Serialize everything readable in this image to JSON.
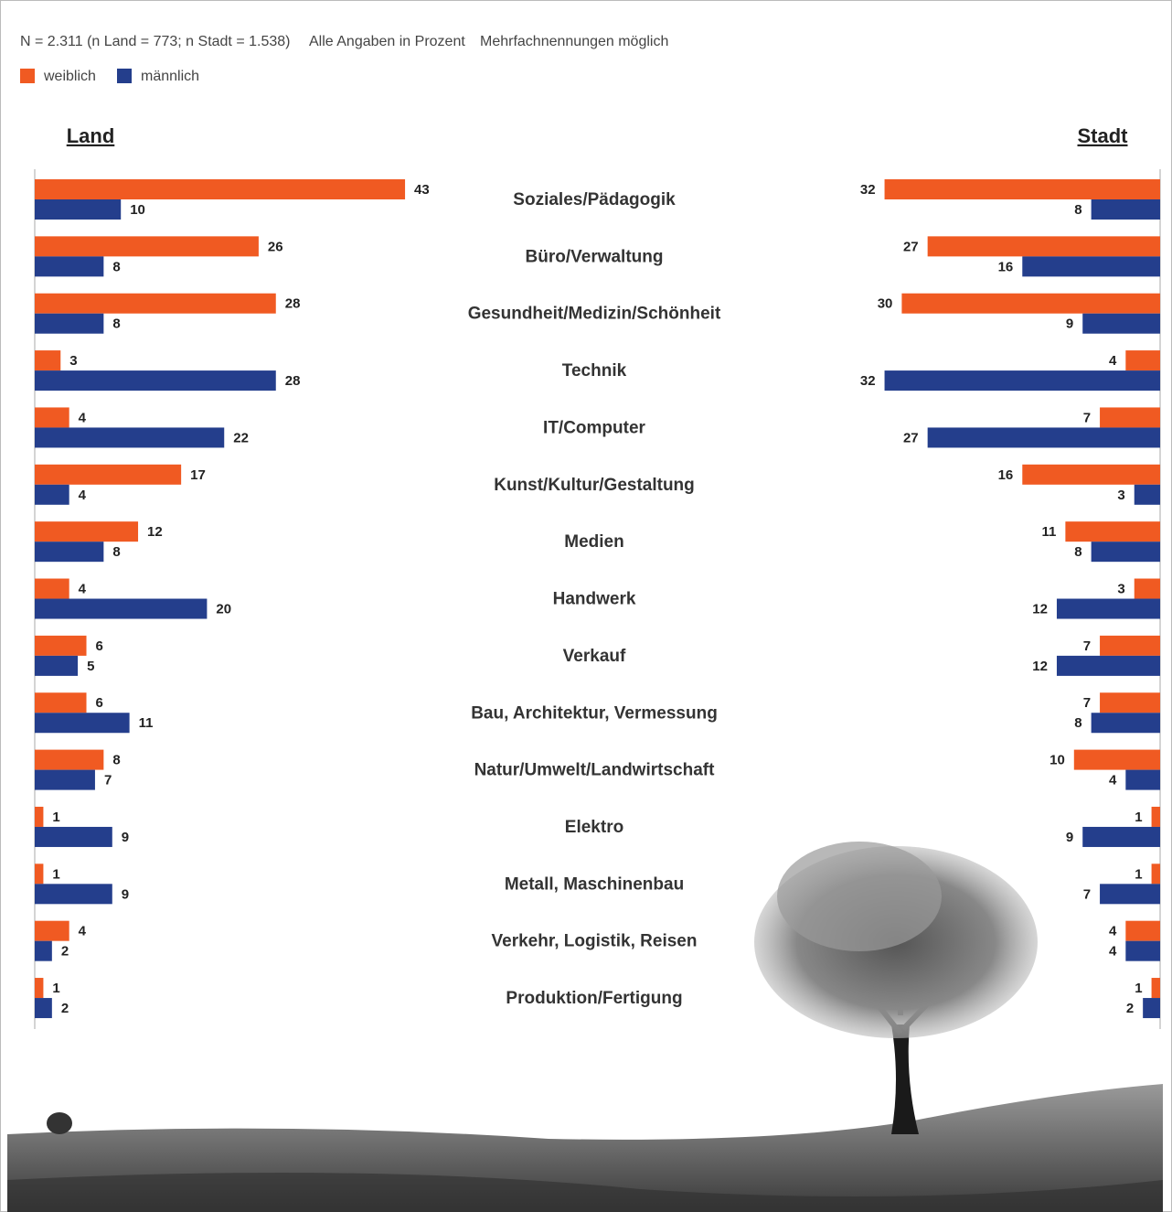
{
  "chart_data": {
    "type": "bar",
    "subtitle": "N = 2.311 (n Land = 773; n Stadt = 1.538)",
    "notes": [
      "Alle Angaben in Prozent",
      "Mehrfachnennungen möglich"
    ],
    "panels": [
      "Land",
      "Stadt"
    ],
    "categories": [
      "Soziales/Pädagogik",
      "Büro/Verwaltung",
      "Gesundheit/Medizin/Schönheit",
      "Technik",
      "IT/Computer",
      "Kunst/Kultur/Gestaltung",
      "Medien",
      "Handwerk",
      "Verkauf",
      "Bau, Architektur, Vermessung",
      "Natur/Umwelt/Landwirtschaft",
      "Elektro",
      "Metall, Maschinenbau",
      "Verkehr, Logistik, Reisen",
      "Produktion/Fertigung"
    ],
    "series": [
      {
        "name": "weiblich",
        "color": "#f05a22",
        "values": [
          [
            43,
            26,
            28,
            3,
            4,
            17,
            12,
            4,
            6,
            6,
            8,
            1,
            1,
            4,
            1
          ],
          [
            32,
            27,
            30,
            4,
            7,
            16,
            11,
            3,
            7,
            7,
            10,
            1,
            1,
            4,
            1
          ]
        ]
      },
      {
        "name": "männlich",
        "color": "#243e8c",
        "values": [
          [
            10,
            8,
            8,
            28,
            22,
            4,
            8,
            20,
            5,
            11,
            7,
            9,
            9,
            2,
            2
          ],
          [
            8,
            16,
            9,
            32,
            27,
            3,
            8,
            12,
            12,
            8,
            4,
            9,
            7,
            4,
            2
          ]
        ]
      }
    ]
  }
}
